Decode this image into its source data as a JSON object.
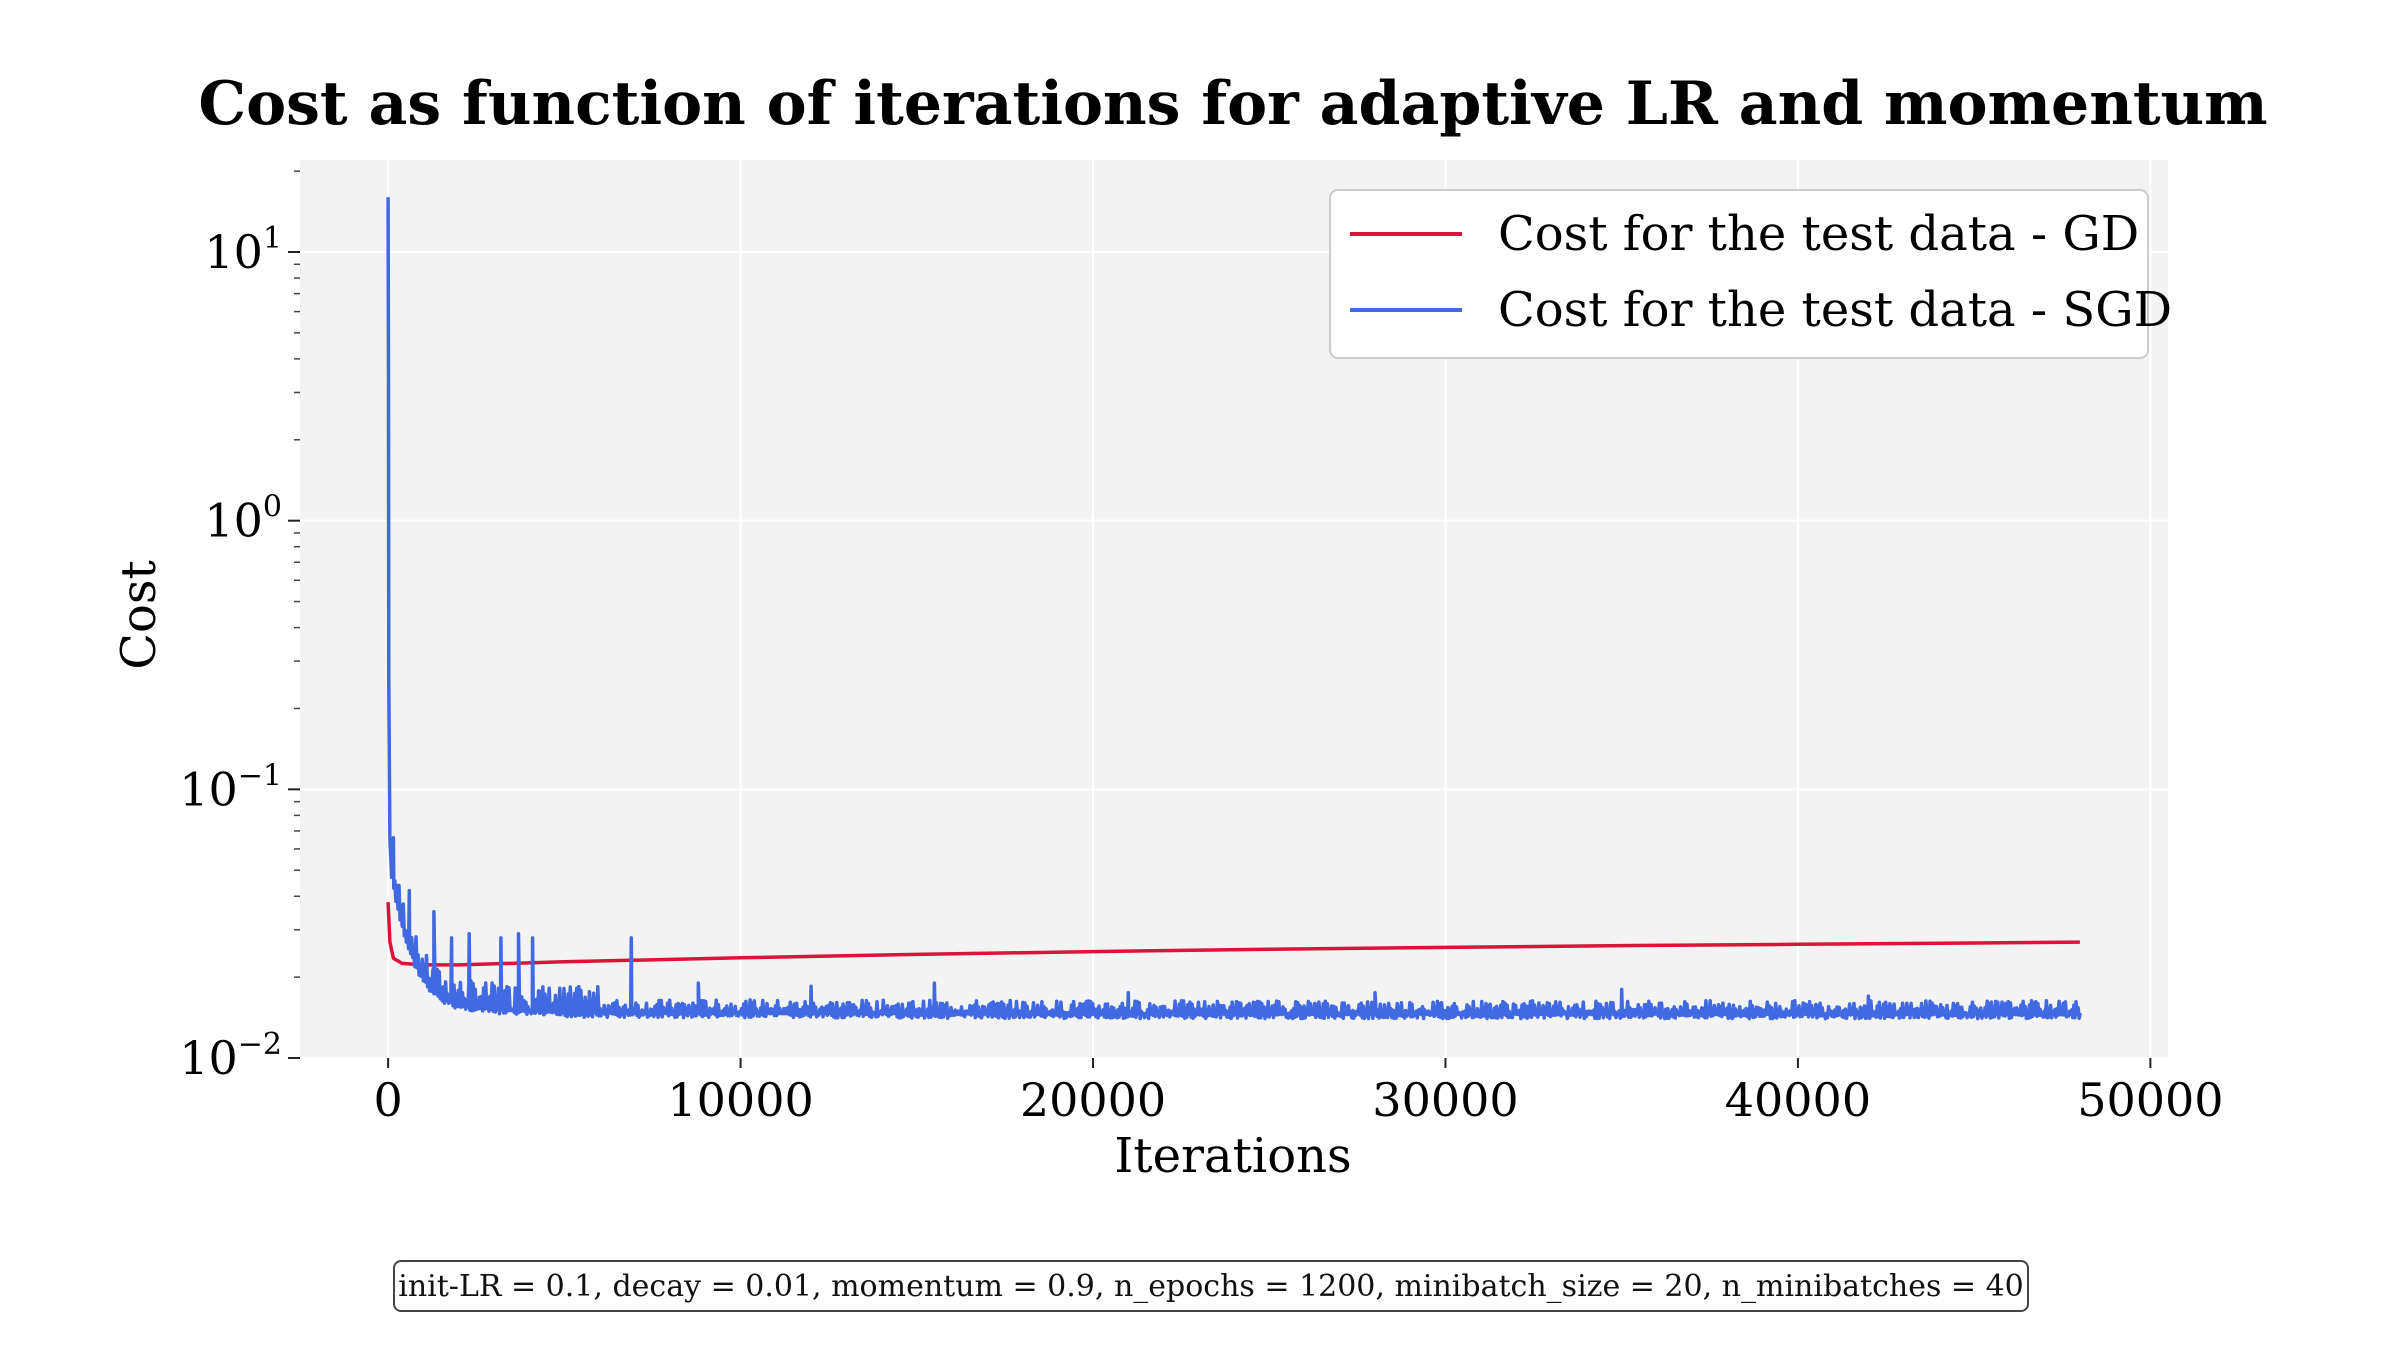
{
  "chart_data": {
    "type": "line",
    "title": "Cost as function of iterations for adaptive LR and momentum",
    "xlabel": "Iterations",
    "ylabel": "Cost",
    "yscale": "log",
    "xlim": [
      -2500,
      50500
    ],
    "ylim": [
      0.01,
      22
    ],
    "x_ticks": [
      0,
      10000,
      20000,
      30000,
      40000,
      50000
    ],
    "x_tick_labels": [
      "0",
      "10000",
      "20000",
      "30000",
      "40000",
      "50000"
    ],
    "y_ticks": [
      {
        "value": 10,
        "base": "10",
        "exp": "1"
      },
      {
        "value": 1,
        "base": "10",
        "exp": "0"
      },
      {
        "value": 0.1,
        "base": "10",
        "exp": "−1"
      },
      {
        "value": 0.01,
        "base": "10",
        "exp": "−2"
      }
    ],
    "grid": true,
    "legend_position": "top-right",
    "series": [
      {
        "name": "Cost for the test data - GD",
        "color": "#DC143C",
        "x": [
          0,
          50,
          150,
          400,
          1000,
          2000,
          5000,
          10000,
          15000,
          20000,
          25000,
          30000,
          35000,
          40000,
          45000,
          48000
        ],
        "y": [
          0.038,
          0.027,
          0.0235,
          0.0225,
          0.0222,
          0.0222,
          0.0228,
          0.0236,
          0.0243,
          0.0249,
          0.0254,
          0.0258,
          0.0262,
          0.0265,
          0.0268,
          0.027
        ]
      },
      {
        "name": "Cost for the test data - SGD",
        "color": "#4169E1",
        "x": [
          0,
          10,
          20,
          50,
          100,
          200,
          300,
          500,
          800,
          1200,
          1600,
          2000,
          3000,
          4000,
          5000,
          7000,
          10000,
          20000,
          30000,
          40000,
          48000
        ],
        "y": [
          16,
          3.0,
          0.25,
          0.065,
          0.048,
          0.04,
          0.035,
          0.028,
          0.022,
          0.018,
          0.0165,
          0.0158,
          0.0152,
          0.015,
          0.0148,
          0.0147,
          0.0147,
          0.0146,
          0.0146,
          0.0146,
          0.0146
        ],
        "spikes": [
          {
            "x": 150,
            "y": 0.066
          },
          {
            "x": 600,
            "y": 0.042
          },
          {
            "x": 1300,
            "y": 0.035
          },
          {
            "x": 1800,
            "y": 0.028
          },
          {
            "x": 2300,
            "y": 0.029
          },
          {
            "x": 3200,
            "y": 0.028
          },
          {
            "x": 3700,
            "y": 0.029
          },
          {
            "x": 4100,
            "y": 0.028
          },
          {
            "x": 6900,
            "y": 0.028
          },
          {
            "x": 8800,
            "y": 0.019
          },
          {
            "x": 12000,
            "y": 0.0185
          },
          {
            "x": 15500,
            "y": 0.019
          },
          {
            "x": 21000,
            "y": 0.0175
          },
          {
            "x": 28000,
            "y": 0.0175
          },
          {
            "x": 35000,
            "y": 0.018
          },
          {
            "x": 42000,
            "y": 0.017
          }
        ]
      }
    ]
  },
  "caption": "init-LR = 0.1, decay = 0.01, momentum = 0.9, n_epochs = 1200, minibatch_size = 20, n_minibatches = 40"
}
